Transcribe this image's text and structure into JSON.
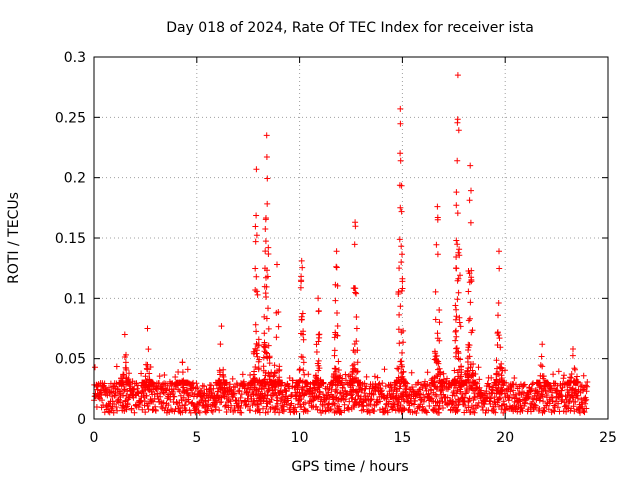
{
  "chart_data": {
    "type": "scatter",
    "title": "Day 018 of 2024, Rate Of TEC Index for receiver ista",
    "xlabel": "GPS time / hours",
    "ylabel": "ROTI / TECUs",
    "xlim": [
      0,
      25
    ],
    "ylim": [
      0,
      0.3
    ],
    "xticks": [
      0,
      5,
      10,
      15,
      20,
      25
    ],
    "yticks": [
      0,
      0.05,
      0.1,
      0.15,
      0.2,
      0.25,
      0.3
    ],
    "xtick_labels": [
      "0",
      "5",
      "10",
      "15",
      "20",
      "25"
    ],
    "ytick_labels": [
      "0",
      "0.05",
      "0.1",
      "0.15",
      "0.2",
      "0.25",
      "0.3"
    ],
    "grid": true,
    "marker": "+",
    "color": "#ff0000",
    "series": [
      {
        "name": "ROTI",
        "x_range": [
          0,
          24
        ],
        "baseline_band": [
          0.005,
          0.03
        ],
        "peaks": [
          {
            "x": 1.5,
            "y": 0.07
          },
          {
            "x": 2.6,
            "y": 0.075
          },
          {
            "x": 4.3,
            "y": 0.047
          },
          {
            "x": 6.2,
            "y": 0.077
          },
          {
            "x": 7.9,
            "y": 0.207
          },
          {
            "x": 8.4,
            "y": 0.235
          },
          {
            "x": 8.9,
            "y": 0.128
          },
          {
            "x": 10.1,
            "y": 0.131
          },
          {
            "x": 10.9,
            "y": 0.1
          },
          {
            "x": 11.8,
            "y": 0.139
          },
          {
            "x": 12.7,
            "y": 0.163
          },
          {
            "x": 14.9,
            "y": 0.257
          },
          {
            "x": 16.7,
            "y": 0.176
          },
          {
            "x": 17.7,
            "y": 0.285
          },
          {
            "x": 18.3,
            "y": 0.21
          },
          {
            "x": 19.7,
            "y": 0.139
          },
          {
            "x": 21.8,
            "y": 0.062
          },
          {
            "x": 23.3,
            "y": 0.058
          }
        ]
      }
    ]
  }
}
